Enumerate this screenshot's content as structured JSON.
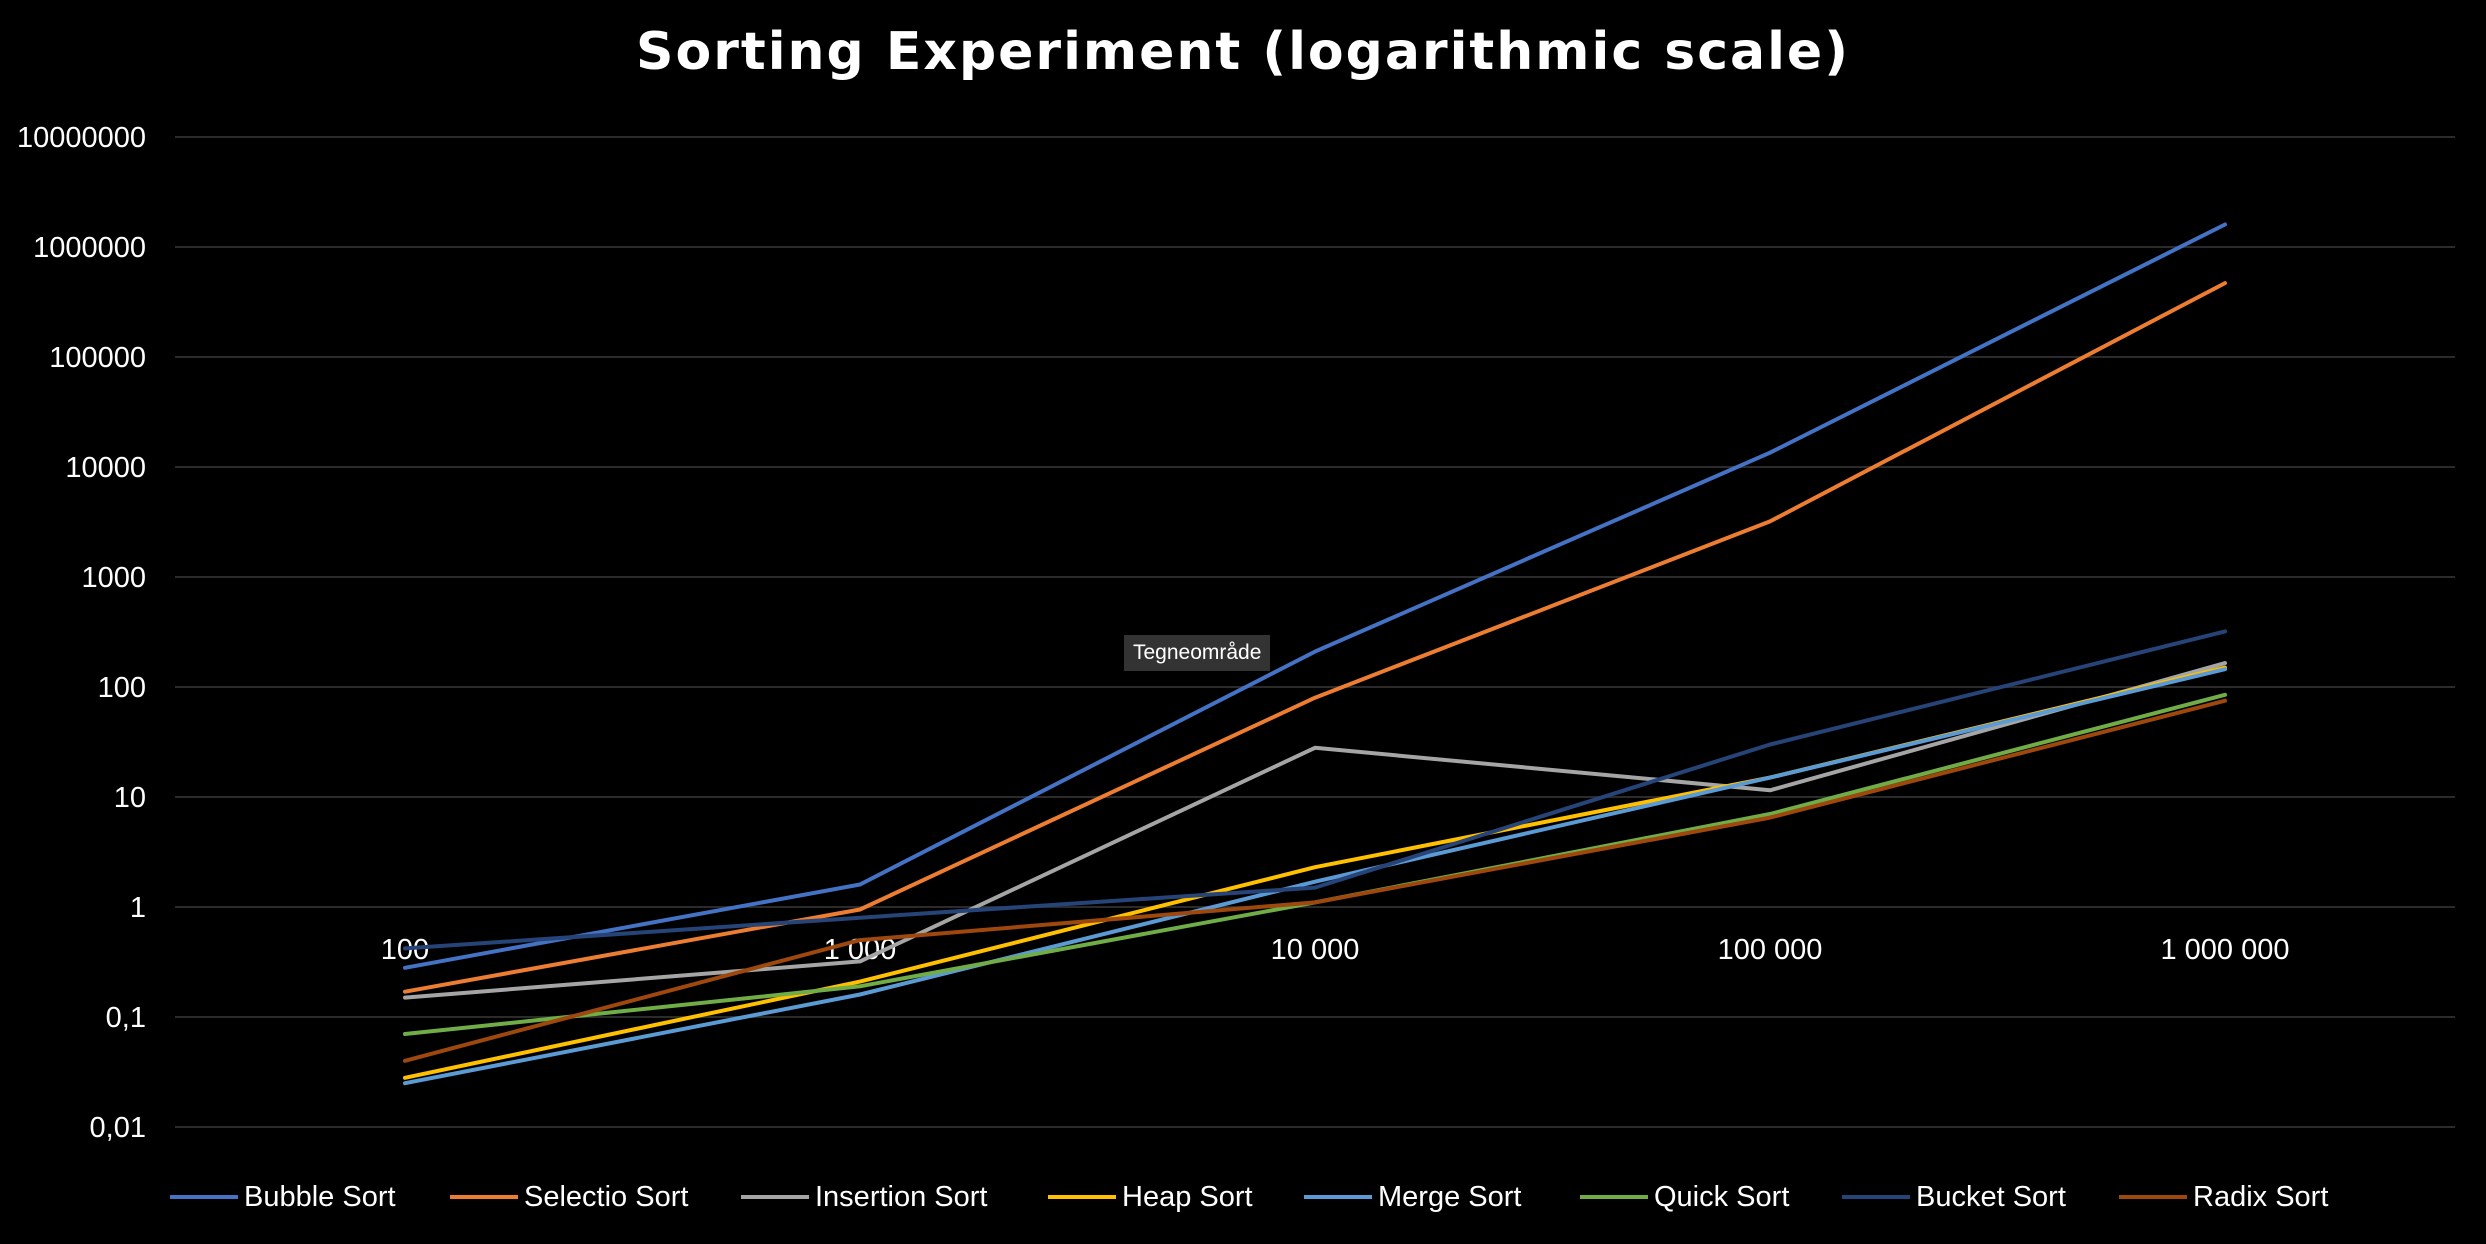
{
  "chart_data": {
    "type": "line",
    "title": "Sorting Experiment (logarithmic scale)",
    "xlabel": "",
    "ylabel": "",
    "y_scale": "log",
    "ylim": [
      0.01,
      10000000
    ],
    "y_ticks": [
      "10000000",
      "1000000",
      "100000",
      "10000",
      "1000",
      "100",
      "10",
      "1",
      "0,1",
      "0,01"
    ],
    "categories": [
      "100",
      "1 000",
      "10 000",
      "100 000",
      "1 000 000"
    ],
    "grid": true,
    "legend_position": "bottom",
    "series": [
      {
        "name": "Bubble Sort",
        "color": "#4472C4",
        "values": [
          0.28,
          1.6,
          210,
          13500,
          1600000
        ]
      },
      {
        "name": "Selectio Sort",
        "color": "#ED7D31",
        "values": [
          0.17,
          0.95,
          80,
          3200,
          470000
        ]
      },
      {
        "name": "Insertion Sort",
        "color": "#A5A5A5",
        "values": [
          0.15,
          0.32,
          28,
          11.5,
          165
        ]
      },
      {
        "name": "Heap Sort",
        "color": "#FFC000",
        "values": [
          0.028,
          0.21,
          2.3,
          15,
          150
        ]
      },
      {
        "name": "Merge Sort",
        "color": "#5B9BD5",
        "values": [
          0.025,
          0.16,
          1.7,
          15,
          145
        ]
      },
      {
        "name": "Quick Sort",
        "color": "#70AD47",
        "values": [
          0.07,
          0.19,
          1.1,
          7,
          85
        ]
      },
      {
        "name": "Bucket Sort",
        "color": "#264478",
        "values": [
          0.42,
          0.8,
          1.5,
          30,
          320
        ]
      },
      {
        "name": "Radix Sort",
        "color": "#9E480E",
        "values": [
          0.04,
          0.5,
          1.1,
          6.5,
          75
        ]
      }
    ]
  },
  "tooltip": {
    "text": "Tegneområde"
  }
}
